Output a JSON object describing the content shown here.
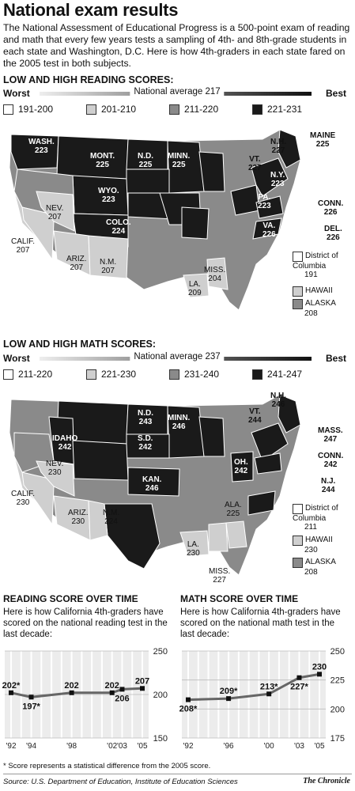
{
  "title": "National exam results",
  "intro": "The National Assessment of Educational Progress is a 500-point exam of reading and math that every few years tests a sampling of 4th- and 8th-grade students in each state and Washington, D.C. Here is how 4th-graders in each state fared on the 2005 test in both subjects.",
  "reading_map": {
    "heading": "LOW AND HIGH READING SCORES:",
    "worst": "Worst",
    "best": "Best",
    "average": "National average 217",
    "legend": [
      "191-200",
      "201-210",
      "211-220",
      "221-231"
    ],
    "labels": [
      {
        "state": "WASH.",
        "score": "223"
      },
      {
        "state": "MONT.",
        "score": "225"
      },
      {
        "state": "N.D.",
        "score": "225"
      },
      {
        "state": "MINN.",
        "score": "225"
      },
      {
        "state": "WYO.",
        "score": "223"
      },
      {
        "state": "COLO.",
        "score": "224"
      },
      {
        "state": "NEV.",
        "score": "207"
      },
      {
        "state": "CALIF.",
        "score": "207"
      },
      {
        "state": "ARIZ.",
        "score": "207"
      },
      {
        "state": "N.M.",
        "score": "207"
      },
      {
        "state": "LA.",
        "score": "209"
      },
      {
        "state": "MISS.",
        "score": "204"
      },
      {
        "state": "MAINE",
        "score": "225"
      },
      {
        "state": "N.H.",
        "score": "227"
      },
      {
        "state": "VT.",
        "score": "227"
      },
      {
        "state": "N.Y.",
        "score": "223"
      },
      {
        "state": "PA.",
        "score": "223"
      },
      {
        "state": "VA.",
        "score": "226"
      },
      {
        "state": "CONN.",
        "score": "226"
      },
      {
        "state": "DEL.",
        "score": "226"
      }
    ],
    "side": [
      {
        "name": "District of Columbia",
        "score": "191"
      },
      {
        "name": "HAWAII",
        "score": ""
      },
      {
        "name": "ALASKA",
        "score": "208"
      }
    ]
  },
  "math_map": {
    "heading": "LOW AND HIGH MATH SCORES:",
    "worst": "Worst",
    "best": "Best",
    "average": "National average 237",
    "legend": [
      "211-220",
      "221-230",
      "231-240",
      "241-247"
    ],
    "labels": [
      {
        "state": "N.D.",
        "score": "243"
      },
      {
        "state": "MINN.",
        "score": "246"
      },
      {
        "state": "S.D.",
        "score": "242"
      },
      {
        "state": "IDAHO",
        "score": "242"
      },
      {
        "state": "KAN.",
        "score": "246"
      },
      {
        "state": "NEV.",
        "score": "230"
      },
      {
        "state": "CALIF.",
        "score": "230"
      },
      {
        "state": "ARIZ.",
        "score": "230"
      },
      {
        "state": "N.M.",
        "score": "224"
      },
      {
        "state": "LA.",
        "score": "230"
      },
      {
        "state": "ALA.",
        "score": "225"
      },
      {
        "state": "MISS.",
        "score": "227"
      },
      {
        "state": "OH.",
        "score": "242"
      },
      {
        "state": "N.H.",
        "score": "246"
      },
      {
        "state": "VT.",
        "score": "244"
      },
      {
        "state": "MASS.",
        "score": "247"
      },
      {
        "state": "CONN.",
        "score": "242"
      },
      {
        "state": "N.J.",
        "score": "244"
      }
    ],
    "side": [
      {
        "name": "District of Columbia",
        "score": "211"
      },
      {
        "name": "HAWAII",
        "score": "230"
      },
      {
        "name": "ALASKA",
        "score": "208"
      }
    ]
  },
  "reading_chart": {
    "heading": "READING SCORE OVER TIME",
    "desc": "Here is how California 4th-graders have scored on the national reading test in the last decade:"
  },
  "math_chart": {
    "heading": "MATH SCORE OVER TIME",
    "desc": "Here is how California 4th-graders have scored on the national math test in the last decade:"
  },
  "chart_data": [
    {
      "type": "line",
      "title": "READING SCORE OVER TIME",
      "x": [
        1992,
        1994,
        1998,
        2002,
        2003,
        2005
      ],
      "tick_labels": [
        "'92",
        "'94",
        "'98",
        "'02",
        "'03",
        "'05"
      ],
      "series": [
        {
          "values": [
            202,
            197,
            202,
            202,
            206,
            207
          ],
          "labels": [
            "202*",
            "197*",
            "202",
            "202",
            "206",
            "207"
          ]
        }
      ],
      "ylim": [
        150,
        250
      ],
      "yticks": [
        150,
        200,
        250
      ]
    },
    {
      "type": "line",
      "title": "MATH SCORE OVER TIME",
      "x": [
        1992,
        1996,
        2000,
        2003,
        2005
      ],
      "tick_labels": [
        "'92",
        "'96",
        "'00",
        "'03",
        "'05"
      ],
      "series": [
        {
          "values": [
            208,
            209,
            213,
            227,
            230
          ],
          "labels": [
            "208*",
            "209*",
            "213*",
            "227*",
            "230"
          ]
        }
      ],
      "ylim": [
        175,
        250
      ],
      "yticks": [
        175,
        200,
        225,
        250
      ]
    }
  ],
  "footnote": "* Score represents a statistical difference from the 2005 score.",
  "source": "Source: U.S. Department of Education, Institute of Education Sciences",
  "credit": "The Chronicle",
  "colors": {
    "c1": "#ffffff",
    "c2": "#cfcfcf",
    "c3": "#8a8a8a",
    "c4": "#1a1a1a"
  }
}
